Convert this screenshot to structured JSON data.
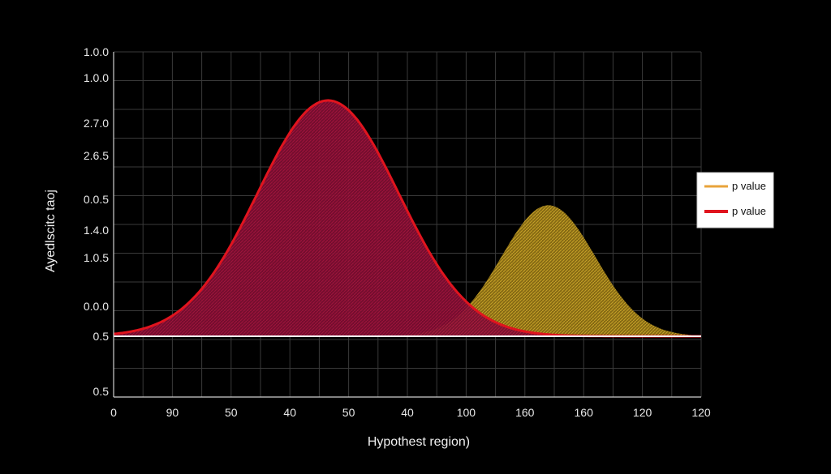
{
  "chart_data": {
    "type": "area",
    "title": "",
    "xlabel": "Hypothest region)",
    "ylabel": "Ayedlscitc taoj",
    "x_tick_labels": [
      "0",
      "90",
      "50",
      "40",
      "50",
      "40",
      "100",
      "160",
      "160",
      "120",
      "120"
    ],
    "y_tick_labels": [
      "1.0.0",
      "1.0.0",
      "2.7.0",
      "2.6.5",
      "0.0.5",
      "1.4.0",
      "1.0.5",
      "0.0.0",
      "0.5",
      "0.5"
    ],
    "grid": true,
    "legend_position": "right",
    "series": [
      {
        "name": "p value",
        "color": "#e8a33a",
        "fill": "#b8951e",
        "peak_x_index": 7.4,
        "peak_y_level": 0.55,
        "width_index": 0.8
      },
      {
        "name": "p value",
        "color": "#e0141e",
        "fill": "#8a1034",
        "peak_x_index": 3.65,
        "peak_y_level": 0.99,
        "width_index": 1.2
      }
    ],
    "baseline_level": 0.0
  }
}
